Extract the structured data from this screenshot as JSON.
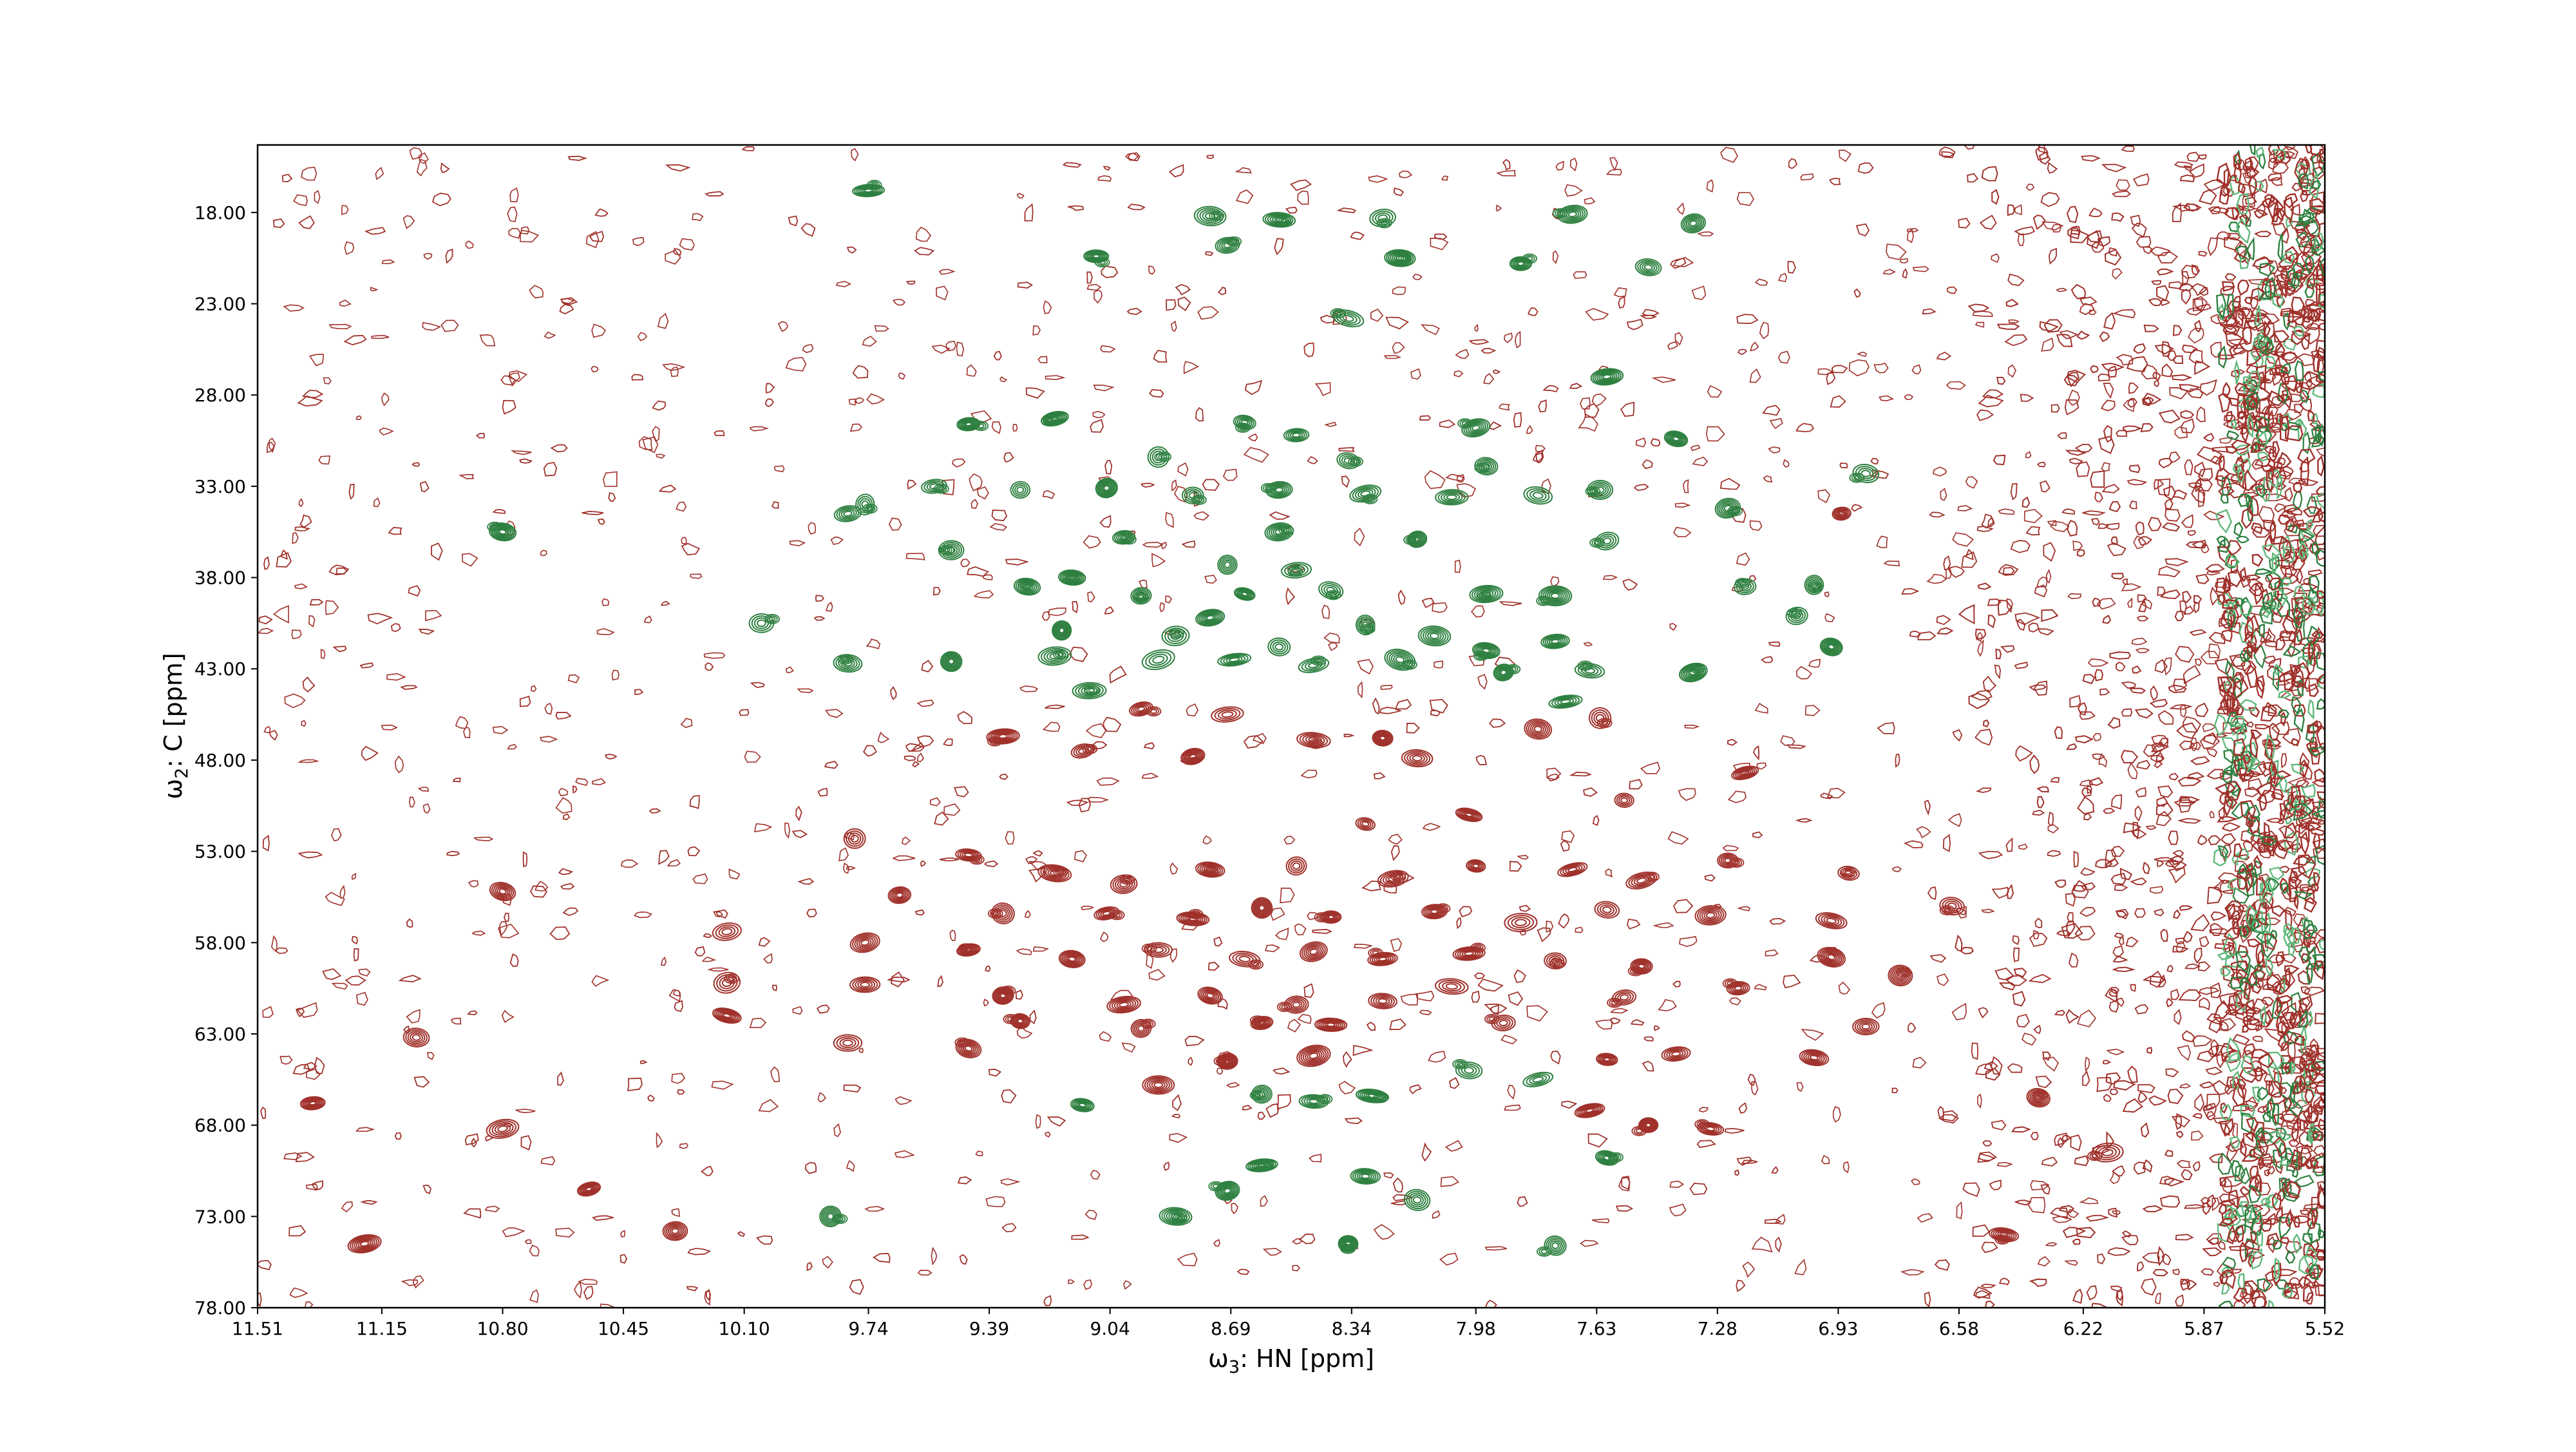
{
  "chart_data": {
    "type": "contour",
    "title": "",
    "xlabel": {
      "symbol": "ω",
      "sub": "3",
      "rest": ": HN [ppm]"
    },
    "ylabel": {
      "symbol": "ω",
      "sub": "2",
      "rest": ": C [ppm]"
    },
    "x_axis": {
      "reversed": true,
      "lim": [
        11.51,
        5.52
      ],
      "ticks": [
        11.51,
        11.15,
        10.8,
        10.45,
        10.1,
        9.74,
        9.39,
        9.04,
        8.69,
        8.34,
        7.98,
        7.63,
        7.28,
        6.93,
        6.58,
        6.22,
        5.87,
        5.52
      ],
      "tick_labels": [
        "11.51",
        "11.15",
        "10.80",
        "10.45",
        "10.10",
        "9.74",
        "9.39",
        "9.04",
        "8.69",
        "8.34",
        "7.98",
        "7.63",
        "7.28",
        "6.93",
        "6.58",
        "6.22",
        "5.87",
        "5.52"
      ]
    },
    "y_axis": {
      "reversed": true,
      "lim": [
        14.3,
        78.0
      ],
      "ticks": [
        18.0,
        23.0,
        28.0,
        33.0,
        38.0,
        43.0,
        48.0,
        53.0,
        58.0,
        63.0,
        68.0,
        73.0,
        78.0
      ],
      "tick_labels": [
        "18.00",
        "23.00",
        "28.00",
        "33.00",
        "38.00",
        "43.00",
        "48.00",
        "53.00",
        "58.00",
        "63.00",
        "68.00",
        "73.00",
        "78.00"
      ]
    },
    "grid": false,
    "legend": "none",
    "colors": {
      "positive": "#a0312b",
      "negative": "#2e8040",
      "noise_edge": "#5fb87a"
    },
    "series": [
      {
        "sign": "negative",
        "peaks": [
          [
            9.74,
            16.8
          ],
          [
            8.75,
            18.2
          ],
          [
            8.55,
            18.4
          ],
          [
            8.25,
            18.3
          ],
          [
            7.7,
            18.1
          ],
          [
            8.7,
            19.8
          ],
          [
            8.2,
            20.5
          ],
          [
            9.08,
            20.4
          ],
          [
            7.85,
            20.8
          ],
          [
            7.48,
            21.0
          ],
          [
            8.35,
            23.8
          ],
          [
            7.6,
            27.0
          ],
          [
            9.2,
            29.3
          ],
          [
            9.45,
            29.6
          ],
          [
            8.65,
            29.5
          ],
          [
            8.5,
            30.2
          ],
          [
            7.98,
            29.8
          ],
          [
            7.4,
            30.4
          ],
          [
            8.9,
            31.4
          ],
          [
            8.35,
            31.6
          ],
          [
            7.95,
            31.9
          ],
          [
            6.85,
            32.3
          ],
          [
            9.55,
            33.0
          ],
          [
            9.3,
            33.2
          ],
          [
            9.05,
            33.1
          ],
          [
            8.8,
            33.5
          ],
          [
            8.55,
            33.2
          ],
          [
            8.3,
            33.4
          ],
          [
            8.05,
            33.6
          ],
          [
            7.8,
            33.5
          ],
          [
            7.62,
            33.2
          ],
          [
            7.25,
            34.2
          ],
          [
            9.75,
            34.0
          ],
          [
            9.8,
            34.5
          ],
          [
            9.0,
            35.8
          ],
          [
            8.55,
            35.5
          ],
          [
            8.15,
            35.9
          ],
          [
            7.6,
            36.0
          ],
          [
            8.7,
            37.3
          ],
          [
            8.5,
            37.6
          ],
          [
            9.15,
            38.0
          ],
          [
            9.28,
            38.5
          ],
          [
            8.95,
            39.0
          ],
          [
            8.65,
            38.9
          ],
          [
            8.4,
            38.7
          ],
          [
            7.95,
            38.9
          ],
          [
            7.75,
            39.0
          ],
          [
            7.2,
            38.5
          ],
          [
            7.0,
            38.4
          ],
          [
            10.05,
            40.5
          ],
          [
            9.18,
            40.9
          ],
          [
            8.85,
            41.2
          ],
          [
            8.55,
            41.8
          ],
          [
            8.3,
            40.6
          ],
          [
            8.1,
            41.2
          ],
          [
            7.75,
            41.5
          ],
          [
            7.95,
            42.0
          ],
          [
            6.95,
            41.8
          ],
          [
            9.8,
            42.7
          ],
          [
            9.5,
            42.6
          ],
          [
            9.2,
            42.3
          ],
          [
            8.9,
            42.5
          ],
          [
            8.68,
            42.5
          ],
          [
            8.45,
            42.8
          ],
          [
            8.2,
            42.5
          ],
          [
            7.9,
            43.2
          ],
          [
            7.65,
            43.1
          ],
          [
            7.35,
            43.2
          ],
          [
            9.1,
            44.2
          ],
          [
            7.72,
            44.8
          ],
          [
            8.0,
            65.0
          ],
          [
            7.8,
            65.5
          ],
          [
            9.12,
            66.9
          ],
          [
            8.6,
            66.3
          ],
          [
            8.45,
            66.7
          ],
          [
            8.28,
            66.4
          ],
          [
            7.6,
            69.8
          ],
          [
            8.6,
            70.2
          ],
          [
            8.3,
            70.8
          ],
          [
            8.7,
            71.6
          ],
          [
            8.15,
            72.1
          ],
          [
            8.85,
            73.0
          ],
          [
            9.85,
            73.0
          ],
          [
            8.35,
            74.5
          ],
          [
            7.75,
            74.6
          ],
          [
            8.75,
            40.2
          ],
          [
            9.5,
            36.5
          ],
          [
            10.8,
            35.5
          ],
          [
            7.35,
            18.6
          ],
          [
            7.05,
            40.1
          ]
        ]
      },
      {
        "sign": "positive",
        "peaks": [
          [
            8.95,
            45.2
          ],
          [
            8.7,
            45.5
          ],
          [
            9.35,
            46.7
          ],
          [
            9.12,
            47.5
          ],
          [
            8.8,
            47.8
          ],
          [
            8.25,
            46.8
          ],
          [
            8.45,
            46.9
          ],
          [
            8.15,
            47.9
          ],
          [
            7.8,
            46.3
          ],
          [
            7.62,
            45.7
          ],
          [
            7.55,
            50.2
          ],
          [
            8.0,
            51.0
          ],
          [
            8.3,
            51.5
          ],
          [
            9.78,
            52.3
          ],
          [
            9.45,
            53.2
          ],
          [
            9.2,
            54.2
          ],
          [
            9.0,
            54.8
          ],
          [
            8.75,
            54.0
          ],
          [
            8.5,
            53.8
          ],
          [
            8.22,
            54.5
          ],
          [
            7.98,
            53.8
          ],
          [
            7.7,
            54.0
          ],
          [
            7.5,
            54.6
          ],
          [
            7.25,
            53.5
          ],
          [
            6.9,
            54.2
          ],
          [
            9.65,
            55.4
          ],
          [
            9.35,
            56.4
          ],
          [
            9.05,
            56.4
          ],
          [
            8.8,
            56.7
          ],
          [
            8.6,
            56.1
          ],
          [
            8.4,
            56.6
          ],
          [
            8.1,
            56.3
          ],
          [
            7.85,
            56.9
          ],
          [
            7.6,
            56.2
          ],
          [
            7.3,
            56.5
          ],
          [
            6.95,
            56.8
          ],
          [
            10.15,
            57.4
          ],
          [
            9.75,
            58.0
          ],
          [
            9.45,
            58.4
          ],
          [
            9.15,
            58.9
          ],
          [
            8.9,
            58.4
          ],
          [
            8.65,
            58.9
          ],
          [
            8.45,
            58.5
          ],
          [
            8.25,
            58.9
          ],
          [
            8.0,
            58.6
          ],
          [
            7.75,
            59.0
          ],
          [
            7.5,
            59.3
          ],
          [
            6.95,
            58.8
          ],
          [
            6.75,
            59.8
          ],
          [
            10.15,
            60.2
          ],
          [
            9.75,
            60.3
          ],
          [
            9.35,
            60.9
          ],
          [
            9.0,
            61.4
          ],
          [
            8.75,
            60.9
          ],
          [
            8.5,
            61.4
          ],
          [
            8.25,
            61.2
          ],
          [
            8.05,
            60.4
          ],
          [
            7.55,
            61.0
          ],
          [
            7.22,
            60.5
          ],
          [
            10.15,
            62.0
          ],
          [
            9.3,
            62.3
          ],
          [
            8.95,
            62.7
          ],
          [
            8.6,
            62.4
          ],
          [
            8.4,
            62.5
          ],
          [
            7.9,
            62.4
          ],
          [
            6.85,
            62.6
          ],
          [
            9.8,
            63.5
          ],
          [
            9.45,
            63.8
          ],
          [
            8.7,
            64.5
          ],
          [
            8.45,
            64.2
          ],
          [
            7.6,
            64.4
          ],
          [
            7.4,
            64.1
          ],
          [
            7.0,
            64.3
          ],
          [
            8.9,
            65.8
          ],
          [
            7.65,
            67.2
          ],
          [
            7.48,
            68.0
          ],
          [
            7.3,
            68.2
          ],
          [
            10.8,
            55.2
          ],
          [
            10.8,
            68.2
          ],
          [
            11.35,
            66.8
          ],
          [
            11.2,
            74.5
          ],
          [
            10.55,
            71.5
          ],
          [
            10.3,
            73.8
          ],
          [
            11.05,
            63.2
          ],
          [
            6.6,
            56.0
          ],
          [
            6.35,
            66.5
          ],
          [
            6.45,
            74.0
          ],
          [
            6.15,
            69.5
          ],
          [
            6.92,
            34.5
          ],
          [
            7.2,
            48.7
          ]
        ]
      }
    ]
  }
}
